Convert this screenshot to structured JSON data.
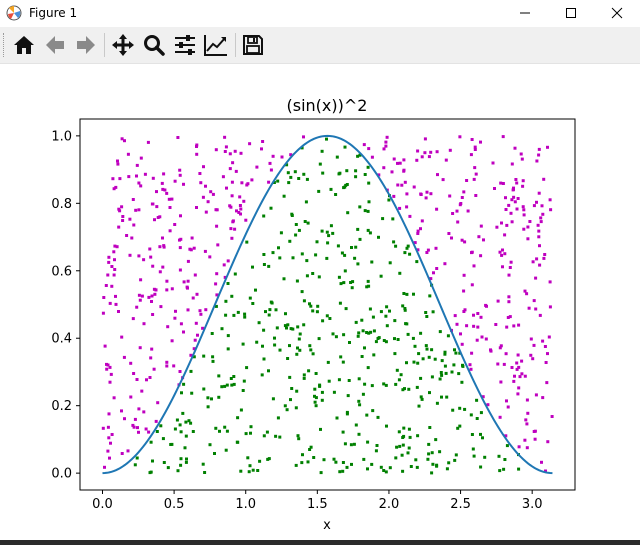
{
  "window": {
    "title": "Figure 1"
  },
  "window_controls": [
    "minimize-icon",
    "maximize-icon",
    "close-icon"
  ],
  "toolbar": {
    "buttons": [
      {
        "name": "home",
        "icon": "home-icon"
      },
      {
        "name": "back",
        "icon": "arrow-left-icon"
      },
      {
        "name": "forward",
        "icon": "arrow-right-icon"
      },
      {
        "name": "pan",
        "icon": "move-arrows-icon"
      },
      {
        "name": "zoom",
        "icon": "magnifier-icon"
      },
      {
        "name": "configure-subplots",
        "icon": "sliders-icon"
      },
      {
        "name": "edit-axis",
        "icon": "line-chart-icon"
      },
      {
        "name": "save",
        "icon": "floppy-disk-icon"
      }
    ]
  },
  "chart_data": {
    "type": "scatter",
    "title": "(sin(x))^2",
    "xlabel": "x",
    "ylabel": "",
    "xlim": [
      -0.157,
      3.299
    ],
    "ylim": [
      -0.05,
      1.05
    ],
    "xticks": [
      0.0,
      0.5,
      1.0,
      1.5,
      2.0,
      2.5,
      3.0
    ],
    "xtick_labels": [
      "0.0",
      "0.5",
      "1.0",
      "1.5",
      "2.0",
      "2.5",
      "3.0"
    ],
    "yticks": [
      0.0,
      0.2,
      0.4,
      0.6,
      0.8,
      1.0
    ],
    "ytick_labels": [
      "0.0",
      "0.2",
      "0.4",
      "0.6",
      "0.8",
      "1.0"
    ],
    "grid": false,
    "curve": {
      "function": "sin(x)^2",
      "x_range": [
        0,
        3.14159
      ],
      "color": "#1f77b4"
    },
    "scatter": {
      "point_count": 1000,
      "x_range": [
        0,
        3.14159
      ],
      "y_range": [
        0,
        1
      ],
      "below_curve_color": "#008000",
      "above_curve_color": "#bf00bf"
    }
  }
}
